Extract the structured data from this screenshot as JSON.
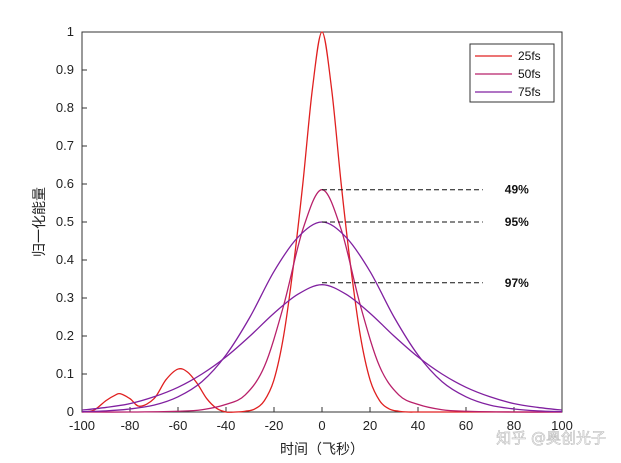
{
  "chart_data": {
    "type": "line",
    "xlabel": "时间（飞秒）",
    "ylabel": "归一化能量",
    "xlim": [
      -100,
      100
    ],
    "ylim": [
      0,
      1
    ],
    "xticks": [
      "-100",
      "-80",
      "-60",
      "-40",
      "-20",
      "0",
      "20",
      "40",
      "60",
      "80",
      "100"
    ],
    "yticks": [
      "0",
      "0.1",
      "0.2",
      "0.3",
      "0.4",
      "0.5",
      "0.6",
      "0.7",
      "0.8",
      "0.9",
      "1"
    ],
    "legend_position": "top-right",
    "grid": false,
    "series": [
      {
        "name": "25fs",
        "color": "#e02020",
        "x": [
          -100,
          -95,
          -90,
          -86,
          -84,
          -80,
          -76,
          -70,
          -65,
          -60,
          -56,
          -52,
          -48,
          -44,
          -40,
          -36,
          -32,
          -28,
          -24,
          -20,
          -16,
          -12,
          -8,
          -4,
          0,
          4,
          8,
          12,
          16,
          20,
          24,
          28,
          32,
          36,
          40,
          50,
          60,
          80,
          100
        ],
        "y": [
          0,
          0.005,
          0.03,
          0.045,
          0.048,
          0.035,
          0.015,
          0.035,
          0.085,
          0.113,
          0.105,
          0.075,
          0.035,
          0.01,
          0,
          0,
          0.002,
          0.008,
          0.03,
          0.085,
          0.2,
          0.38,
          0.6,
          0.85,
          1,
          0.85,
          0.6,
          0.38,
          0.2,
          0.085,
          0.03,
          0.008,
          0.002,
          0,
          0,
          0,
          0,
          0,
          0
        ]
      },
      {
        "name": "50fs",
        "color": "#b8206a",
        "x": [
          -100,
          -80,
          -60,
          -50,
          -40,
          -32,
          -24,
          -16,
          -8,
          0,
          8,
          16,
          24,
          32,
          40,
          50,
          60,
          80,
          100
        ],
        "y": [
          0,
          0,
          0.002,
          0.006,
          0.02,
          0.045,
          0.12,
          0.28,
          0.48,
          0.585,
          0.48,
          0.28,
          0.12,
          0.045,
          0.02,
          0.006,
          0.002,
          0,
          0
        ]
      },
      {
        "name": "75fs",
        "color": "#8020a0",
        "x": [
          -100,
          -90,
          -80,
          -70,
          -60,
          -50,
          -40,
          -30,
          -20,
          -10,
          0,
          10,
          20,
          30,
          40,
          50,
          60,
          70,
          80,
          90,
          100
        ],
        "y": [
          0.001,
          0.003,
          0.008,
          0.018,
          0.04,
          0.08,
          0.15,
          0.25,
          0.37,
          0.46,
          0.5,
          0.46,
          0.37,
          0.25,
          0.15,
          0.08,
          0.04,
          0.018,
          0.008,
          0.003,
          0.001
        ]
      },
      {
        "name": "",
        "color": "#8020a0",
        "x": [
          -100,
          -90,
          -80,
          -70,
          -60,
          -50,
          -40,
          -30,
          -20,
          -10,
          0,
          10,
          20,
          30,
          40,
          50,
          60,
          70,
          80,
          90,
          100
        ],
        "y": [
          0.005,
          0.012,
          0.022,
          0.04,
          0.065,
          0.1,
          0.145,
          0.2,
          0.26,
          0.31,
          0.335,
          0.31,
          0.26,
          0.2,
          0.145,
          0.1,
          0.065,
          0.04,
          0.022,
          0.012,
          0.005
        ]
      }
    ],
    "annotations": [
      {
        "text": "49%",
        "y": 0.585,
        "x_from": 0,
        "x_to": 67
      },
      {
        "text": "95%",
        "y": 0.5,
        "x_from": 0,
        "x_to": 67
      },
      {
        "text": "97%",
        "y": 0.34,
        "x_from": 0,
        "x_to": 67
      }
    ]
  },
  "watermark": "知乎 @奥创光子"
}
